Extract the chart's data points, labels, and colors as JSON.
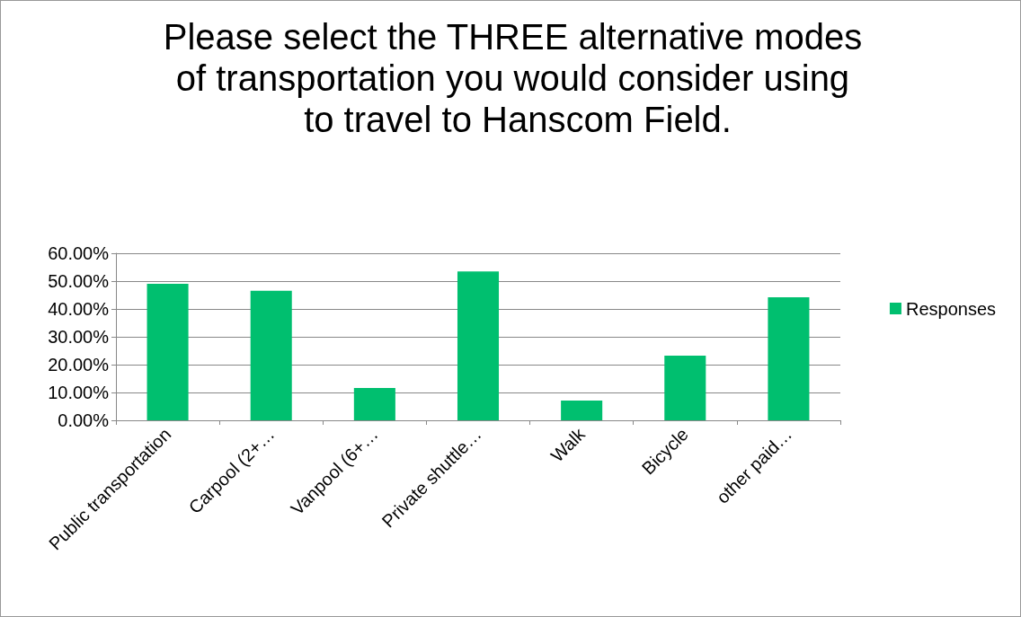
{
  "chart_data": {
    "type": "bar",
    "title": "Please select the THREE alternative modes of transportation you would consider using to travel to Hanscom Field.",
    "categories": [
      "Public transportation",
      "Carpool (2+…",
      "Vanpool (6+…",
      "Private shuttle…",
      "Walk",
      "Bicycle",
      "other paid…"
    ],
    "series": [
      {
        "name": "Responses",
        "color": "#00bf6f",
        "values": [
          49.0,
          46.5,
          11.6,
          53.5,
          7.1,
          23.2,
          44.2
        ]
      }
    ],
    "ylim": [
      0,
      60
    ],
    "yticks": [
      {
        "value": 0,
        "label": "0.00%"
      },
      {
        "value": 10,
        "label": "10.00%"
      },
      {
        "value": 20,
        "label": "20.00%"
      },
      {
        "value": 30,
        "label": "30.00%"
      },
      {
        "value": 40,
        "label": "40.00%"
      },
      {
        "value": 50,
        "label": "50.00%"
      },
      {
        "value": 60,
        "label": "60.00%"
      }
    ],
    "grid": "y",
    "legend": "right"
  }
}
